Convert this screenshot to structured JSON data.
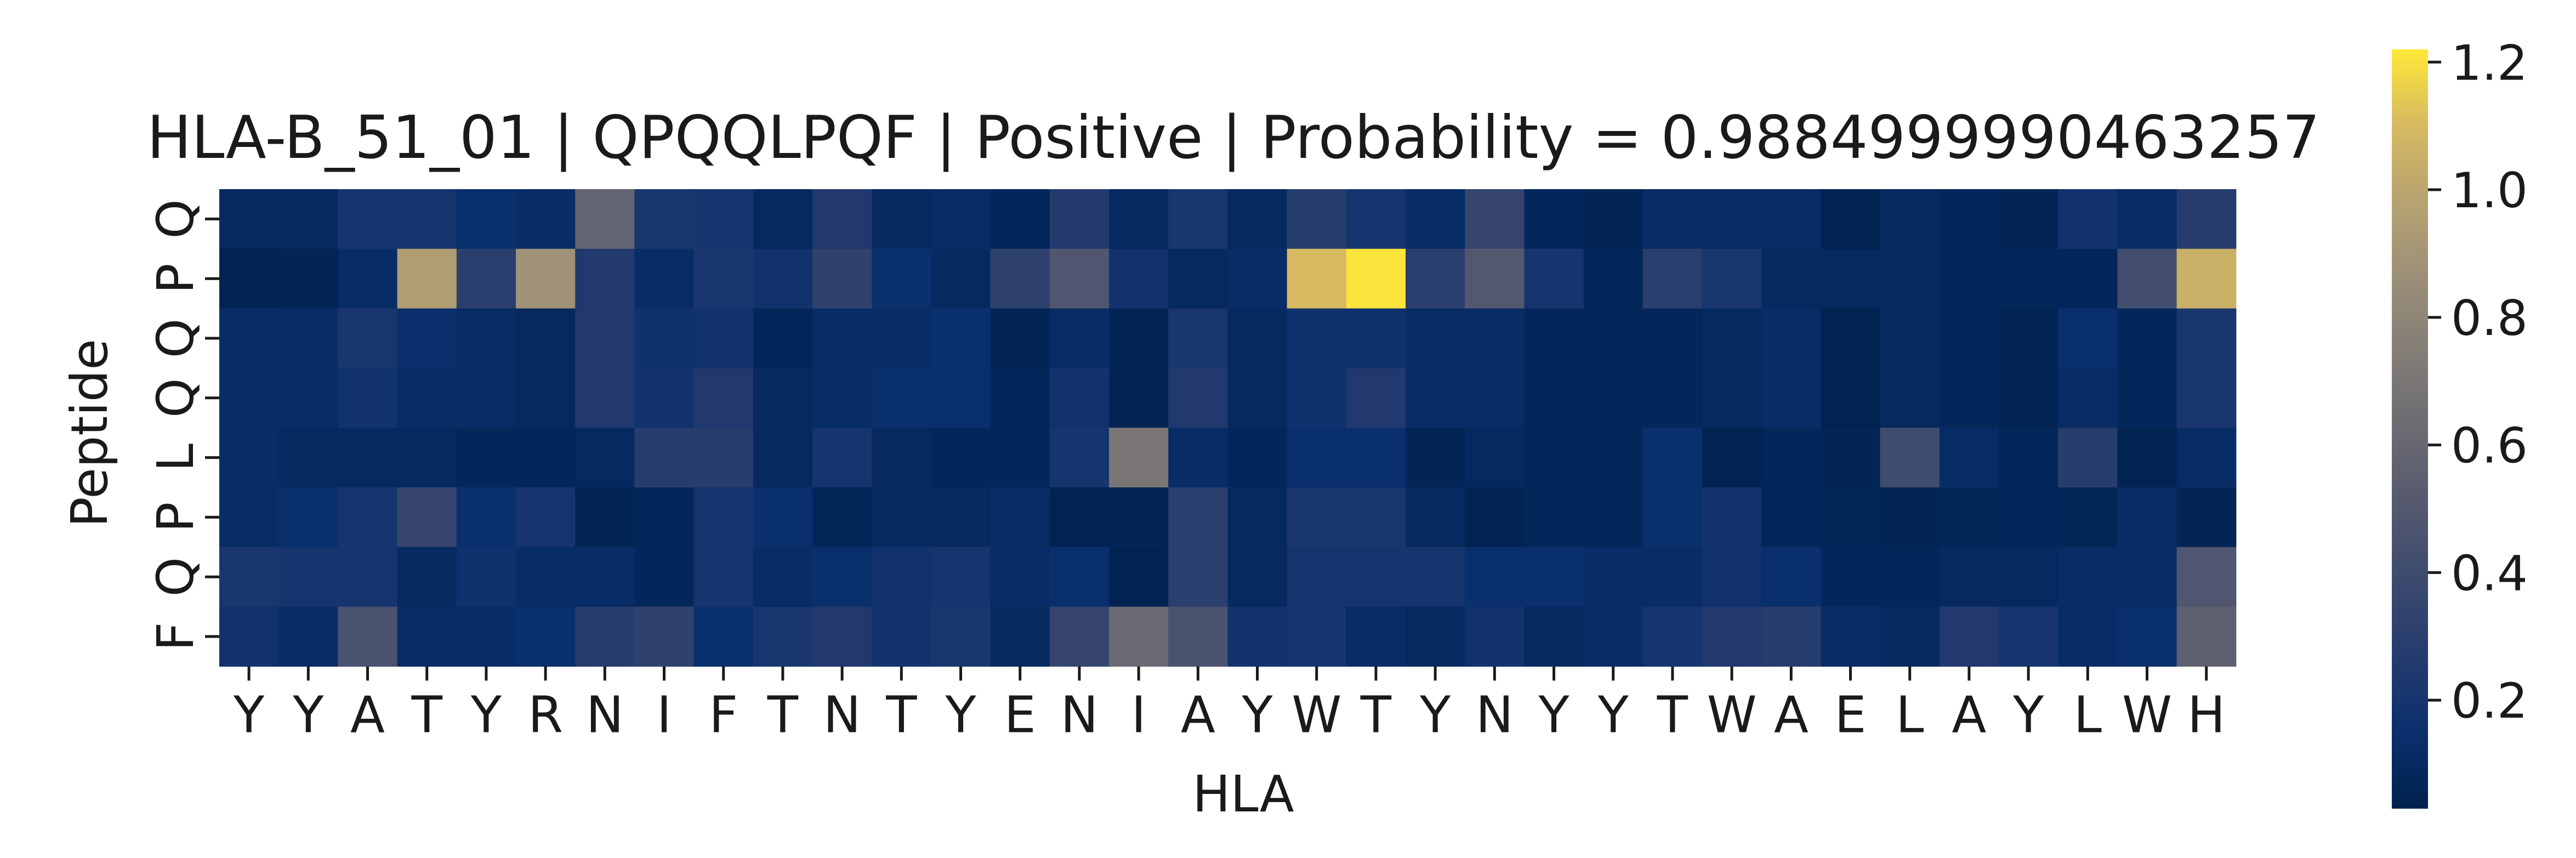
{
  "chart_data": {
    "type": "heatmap",
    "title": "HLA-B_51_01 | QPQQLPQF | Positive | Probability = 0.9884999990463257",
    "xlabel": "HLA",
    "ylabel": "Peptide",
    "x_ticks": [
      "Y",
      "Y",
      "A",
      "T",
      "Y",
      "R",
      "N",
      "I",
      "F",
      "T",
      "N",
      "T",
      "Y",
      "E",
      "N",
      "I",
      "A",
      "Y",
      "W",
      "T",
      "Y",
      "N",
      "Y",
      "Y",
      "T",
      "W",
      "A",
      "E",
      "L",
      "A",
      "Y",
      "L",
      "W",
      "H"
    ],
    "y_ticks": [
      "Q",
      "P",
      "Q",
      "Q",
      "L",
      "P",
      "Q",
      "F"
    ],
    "colormap": "cividis",
    "vmin": 0.03,
    "vmax": 1.22,
    "colorbar_ticks": [
      0.2,
      0.4,
      0.6,
      0.8,
      1.0,
      1.2
    ],
    "values": [
      [
        0.1,
        0.1,
        0.2,
        0.2,
        0.15,
        0.12,
        0.58,
        0.22,
        0.2,
        0.1,
        0.25,
        0.1,
        0.12,
        0.08,
        0.27,
        0.1,
        0.22,
        0.1,
        0.28,
        0.2,
        0.12,
        0.35,
        0.08,
        0.06,
        0.12,
        0.12,
        0.12,
        0.04,
        0.1,
        0.08,
        0.06,
        0.18,
        0.12,
        0.28
      ],
      [
        0.04,
        0.06,
        0.12,
        0.95,
        0.3,
        0.88,
        0.25,
        0.12,
        0.22,
        0.18,
        0.32,
        0.15,
        0.1,
        0.32,
        0.48,
        0.18,
        0.1,
        0.12,
        1.1,
        1.21,
        0.3,
        0.5,
        0.2,
        0.08,
        0.3,
        0.22,
        0.1,
        0.1,
        0.1,
        0.08,
        0.08,
        0.08,
        0.42,
        1.05
      ],
      [
        0.12,
        0.12,
        0.22,
        0.14,
        0.12,
        0.1,
        0.25,
        0.17,
        0.18,
        0.08,
        0.12,
        0.12,
        0.15,
        0.06,
        0.12,
        0.06,
        0.22,
        0.1,
        0.17,
        0.17,
        0.12,
        0.12,
        0.08,
        0.08,
        0.08,
        0.1,
        0.12,
        0.04,
        0.1,
        0.08,
        0.06,
        0.15,
        0.08,
        0.22
      ],
      [
        0.12,
        0.12,
        0.18,
        0.12,
        0.12,
        0.1,
        0.25,
        0.18,
        0.25,
        0.1,
        0.12,
        0.15,
        0.15,
        0.08,
        0.18,
        0.06,
        0.25,
        0.1,
        0.17,
        0.25,
        0.12,
        0.12,
        0.08,
        0.08,
        0.08,
        0.1,
        0.12,
        0.04,
        0.1,
        0.08,
        0.06,
        0.12,
        0.08,
        0.22
      ],
      [
        0.12,
        0.1,
        0.1,
        0.1,
        0.08,
        0.08,
        0.1,
        0.28,
        0.28,
        0.1,
        0.2,
        0.1,
        0.08,
        0.08,
        0.2,
        0.7,
        0.12,
        0.08,
        0.15,
        0.15,
        0.06,
        0.1,
        0.08,
        0.08,
        0.15,
        0.04,
        0.08,
        0.06,
        0.4,
        0.12,
        0.08,
        0.28,
        0.05,
        0.12
      ],
      [
        0.12,
        0.15,
        0.2,
        0.35,
        0.15,
        0.2,
        0.06,
        0.08,
        0.2,
        0.15,
        0.07,
        0.1,
        0.1,
        0.12,
        0.04,
        0.06,
        0.3,
        0.1,
        0.22,
        0.22,
        0.1,
        0.05,
        0.08,
        0.08,
        0.15,
        0.18,
        0.08,
        0.07,
        0.06,
        0.07,
        0.08,
        0.07,
        0.12,
        0.06
      ],
      [
        0.22,
        0.2,
        0.2,
        0.1,
        0.17,
        0.12,
        0.12,
        0.08,
        0.2,
        0.12,
        0.15,
        0.18,
        0.2,
        0.12,
        0.15,
        0.04,
        0.3,
        0.1,
        0.2,
        0.2,
        0.2,
        0.15,
        0.15,
        0.12,
        0.12,
        0.18,
        0.15,
        0.08,
        0.08,
        0.1,
        0.1,
        0.12,
        0.12,
        0.48
      ],
      [
        0.18,
        0.12,
        0.45,
        0.12,
        0.12,
        0.15,
        0.28,
        0.32,
        0.15,
        0.22,
        0.25,
        0.18,
        0.22,
        0.1,
        0.35,
        0.62,
        0.45,
        0.18,
        0.2,
        0.12,
        0.1,
        0.18,
        0.1,
        0.12,
        0.2,
        0.25,
        0.28,
        0.12,
        0.1,
        0.25,
        0.2,
        0.12,
        0.15,
        0.55
      ]
    ]
  }
}
